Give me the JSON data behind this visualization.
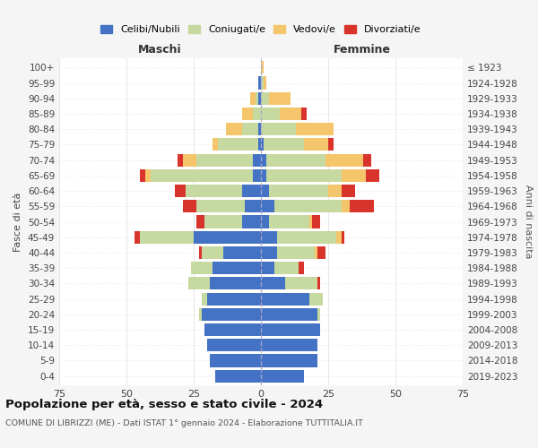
{
  "age_groups": [
    "0-4",
    "5-9",
    "10-14",
    "15-19",
    "20-24",
    "25-29",
    "30-34",
    "35-39",
    "40-44",
    "45-49",
    "50-54",
    "55-59",
    "60-64",
    "65-69",
    "70-74",
    "75-79",
    "80-84",
    "85-89",
    "90-94",
    "95-99",
    "100+"
  ],
  "birth_years": [
    "2019-2023",
    "2014-2018",
    "2009-2013",
    "2004-2008",
    "1999-2003",
    "1994-1998",
    "1989-1993",
    "1984-1988",
    "1979-1983",
    "1974-1978",
    "1969-1973",
    "1964-1968",
    "1959-1963",
    "1954-1958",
    "1949-1953",
    "1944-1948",
    "1939-1943",
    "1934-1938",
    "1929-1933",
    "1924-1928",
    "≤ 1923"
  ],
  "maschi": {
    "celibi": [
      17,
      19,
      20,
      21,
      22,
      20,
      19,
      18,
      14,
      25,
      7,
      6,
      7,
      3,
      3,
      1,
      1,
      0,
      1,
      1,
      0
    ],
    "coniugati": [
      0,
      0,
      0,
      0,
      1,
      2,
      8,
      8,
      8,
      20,
      14,
      18,
      21,
      38,
      21,
      15,
      6,
      3,
      1,
      0,
      0
    ],
    "vedovi": [
      0,
      0,
      0,
      0,
      0,
      0,
      0,
      0,
      0,
      0,
      0,
      0,
      0,
      2,
      5,
      2,
      6,
      4,
      2,
      0,
      0
    ],
    "divorziati": [
      0,
      0,
      0,
      0,
      0,
      0,
      0,
      0,
      1,
      2,
      3,
      5,
      4,
      2,
      2,
      0,
      0,
      0,
      0,
      0,
      0
    ]
  },
  "femmine": {
    "nubili": [
      16,
      21,
      21,
      22,
      21,
      18,
      9,
      5,
      6,
      6,
      3,
      5,
      3,
      2,
      2,
      1,
      0,
      0,
      0,
      0,
      0
    ],
    "coniugate": [
      0,
      0,
      0,
      0,
      1,
      5,
      12,
      9,
      14,
      22,
      15,
      25,
      22,
      28,
      22,
      15,
      13,
      7,
      3,
      1,
      0
    ],
    "vedove": [
      0,
      0,
      0,
      0,
      0,
      0,
      0,
      0,
      1,
      2,
      1,
      3,
      5,
      9,
      14,
      9,
      14,
      8,
      8,
      1,
      1
    ],
    "divorziate": [
      0,
      0,
      0,
      0,
      0,
      0,
      1,
      2,
      3,
      1,
      3,
      9,
      5,
      5,
      3,
      2,
      0,
      2,
      0,
      0,
      0
    ]
  },
  "colors": {
    "celibi_nubili": "#4472C4",
    "coniugati": "#c5d9a0",
    "vedovi": "#f4c56a",
    "divorziati": "#d9342b"
  },
  "title": "Popolazione per età, sesso e stato civile - 2024",
  "subtitle": "COMUNE DI LIBRIZZI (ME) - Dati ISTAT 1° gennaio 2024 - Elaborazione TUTTITALIA.IT",
  "xlabel_left": "Maschi",
  "xlabel_right": "Femmine",
  "ylabel_left": "Fasce di età",
  "ylabel_right": "Anni di nascita",
  "xlim": 75,
  "legend_labels": [
    "Celibi/Nubili",
    "Coniugati/e",
    "Vedovi/e",
    "Divorziati/e"
  ],
  "bg_color": "#f5f5f5",
  "plot_bg": "#ffffff"
}
